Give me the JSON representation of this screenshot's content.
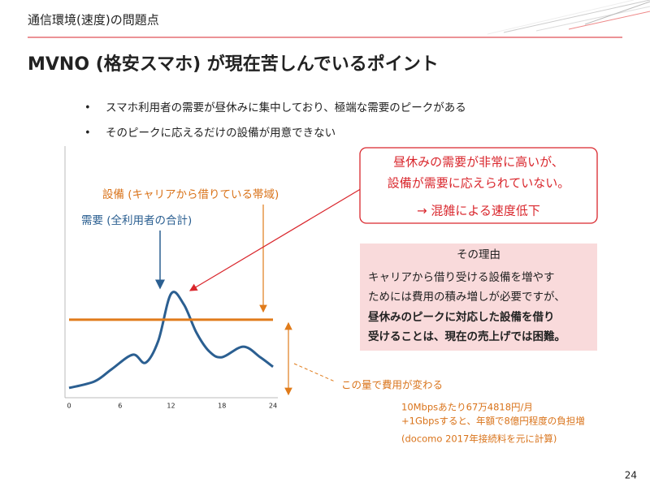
{
  "header": {
    "section": "通信環境(速度)の問題点",
    "title": "MVNO (格安スマホ) が現在苦しんでいるポイント",
    "page": "24"
  },
  "bullets": [
    "スマホ利用者の需要が昼休みに集中しており、極端な需要のピークがある",
    "そのピークに応えるだけの設備が用意できない"
  ],
  "labels": {
    "supply": "設備 (キャリアから借りている帯域)",
    "demand": "需要 (全利用者の合計)",
    "cost": "この量で費用が変わる"
  },
  "callout": [
    "昼休みの需要が非常に高いが、",
    "設備が需要に応えられていない。",
    "→ 混雑による速度低下"
  ],
  "reason": {
    "title": "その理由",
    "lines": [
      "キャリアから借り受ける設備を増やす",
      "ためには費用の積み増しが必要ですが、",
      "昼休みのピークに対応した設備を借り",
      "受けることは、現在の売上げでは困難。"
    ]
  },
  "notes": [
    "10Mbpsあたり67万4818円/月",
    "+1Gbpsすると、年額で8億円程度の負担増",
    "(docomo 2017年接続料を元に計算)"
  ],
  "chart_data": {
    "type": "line",
    "xlim": [
      0,
      24
    ],
    "xticks": [
      0,
      6,
      12,
      18,
      24
    ],
    "ylim": [
      0,
      100
    ],
    "series": [
      {
        "name": "需要 (全利用者の合計)",
        "color": "#2b5f91",
        "x": [
          0,
          3,
          5,
          7.5,
          9,
          10.5,
          12,
          13.5,
          15,
          16.5,
          18,
          20.5,
          22.5,
          24
        ],
        "values": [
          3.9,
          6.5,
          11.3,
          17.1,
          13.9,
          22.6,
          41.3,
          37.1,
          25.8,
          18.4,
          16.1,
          20.3,
          16.1,
          12.3
        ]
      },
      {
        "name": "設備 (キャリアから借りている帯域)",
        "color": "#e07b1a",
        "x": [
          0,
          24
        ],
        "values": [
          31,
          31
        ]
      }
    ]
  }
}
